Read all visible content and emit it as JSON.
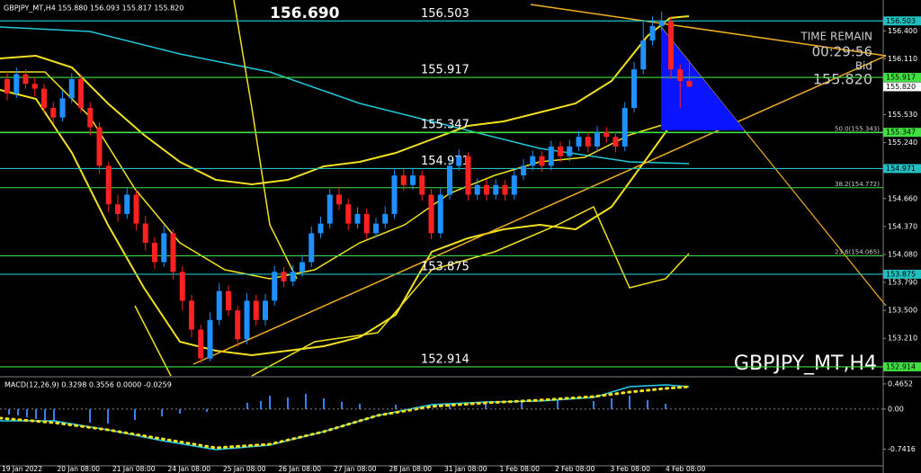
{
  "chart_data": {
    "type": "candlestick",
    "header": "GBPJPY_MT,H4  155.880 156.093 155.817 155.820",
    "current_high": "156.690",
    "time_remain_label": "TIME REMAIN",
    "time_remain": "00:29:56",
    "bid_label": "Bid",
    "bid": "155.820",
    "watermark": "GBPJPY_MT,H4",
    "up_color": "#1e90ff",
    "down_color": "#ff2020",
    "categories": [
      "19 Jan 2022",
      null,
      null,
      null,
      null,
      null,
      "20 Jan 08:00",
      null,
      null,
      null,
      null,
      null,
      "21 Jan 08:00",
      null,
      null,
      null,
      null,
      null,
      "24 Jan 08:00",
      null,
      null,
      null,
      null,
      null,
      "25 Jan 08:00",
      null,
      null,
      null,
      null,
      null,
      "26 Jan 08:00",
      null,
      null,
      null,
      null,
      null,
      "27 Jan 08:00",
      null,
      null,
      null,
      null,
      null,
      "28 Jan 08:00",
      null,
      null,
      null,
      null,
      null,
      "31 Jan 08:00",
      null,
      null,
      null,
      null,
      null,
      "1 Feb 08:00",
      null,
      null,
      null,
      null,
      null,
      "2 Feb 08:00",
      null,
      null,
      null,
      null,
      null,
      "3 Feb 08:00",
      null,
      null,
      null,
      null,
      null,
      "4 Feb 08:00",
      null,
      null
    ],
    "open": [
      155.9,
      155.75,
      155.95,
      155.85,
      155.8,
      155.6,
      155.5,
      155.7,
      155.9,
      155.6,
      155.4,
      155.0,
      154.6,
      154.5,
      154.7,
      154.4,
      154.2,
      154.0,
      154.3,
      153.9,
      153.6,
      153.3,
      153.0,
      153.4,
      153.7,
      153.5,
      153.2,
      153.6,
      153.4,
      153.6,
      153.9,
      153.8,
      153.9,
      154.0,
      154.3,
      154.4,
      154.7,
      154.6,
      154.4,
      154.5,
      154.3,
      154.4,
      154.5,
      154.9,
      154.8,
      154.9,
      154.7,
      154.3,
      154.7,
      155.0,
      155.1,
      154.7,
      154.8,
      154.7,
      154.8,
      154.7,
      154.9,
      155.0,
      155.1,
      155.0,
      155.2,
      155.1,
      155.2,
      155.3,
      155.2,
      155.35,
      155.3,
      155.2,
      155.6,
      156.0,
      156.3,
      156.45,
      156.5,
      156.0,
      155.88
    ],
    "high": [
      155.98,
      156.02,
      156.0,
      155.92,
      155.85,
      155.66,
      155.78,
      155.96,
      155.95,
      155.66,
      155.45,
      155.04,
      154.7,
      154.78,
      154.75,
      154.48,
      154.26,
      154.38,
      154.34,
      153.96,
      153.66,
      153.35,
      153.48,
      153.78,
      153.76,
      153.55,
      153.68,
      153.66,
      153.67,
      153.96,
      153.95,
      153.97,
      154.08,
      154.37,
      154.47,
      154.76,
      154.78,
      154.66,
      154.57,
      154.56,
      154.46,
      154.58,
      154.96,
      154.97,
      154.98,
      154.95,
      154.76,
      154.77,
      155.07,
      155.17,
      155.14,
      154.87,
      154.86,
      154.86,
      154.85,
      154.96,
      155.07,
      155.16,
      155.15,
      155.26,
      155.25,
      155.27,
      155.36,
      155.35,
      155.41,
      155.4,
      155.35,
      155.66,
      156.08,
      156.5,
      156.55,
      156.6,
      156.55,
      156.05,
      156.093
    ],
    "low": [
      155.68,
      155.7,
      155.8,
      155.72,
      155.55,
      155.44,
      155.46,
      155.65,
      155.55,
      155.32,
      154.92,
      154.52,
      154.42,
      154.45,
      154.33,
      154.12,
      153.93,
      153.95,
      153.82,
      153.5,
      153.22,
      152.95,
      152.97,
      153.35,
      153.44,
      153.12,
      153.15,
      153.34,
      153.34,
      153.55,
      153.74,
      153.75,
      153.85,
      153.95,
      154.25,
      154.35,
      154.54,
      154.33,
      154.35,
      154.24,
      154.25,
      154.35,
      154.45,
      154.74,
      154.75,
      154.64,
      154.24,
      154.25,
      154.65,
      154.95,
      154.64,
      154.65,
      154.64,
      154.65,
      154.64,
      154.65,
      154.85,
      154.95,
      154.94,
      154.95,
      155.04,
      155.05,
      155.15,
      155.14,
      155.15,
      155.24,
      155.14,
      155.15,
      155.55,
      155.95,
      156.25,
      156.4,
      155.9,
      155.6,
      155.817
    ],
    "close": [
      155.75,
      155.95,
      155.85,
      155.8,
      155.6,
      155.5,
      155.7,
      155.9,
      155.6,
      155.4,
      155.0,
      154.6,
      154.5,
      154.7,
      154.4,
      154.2,
      154.0,
      154.3,
      153.9,
      153.6,
      153.3,
      153.0,
      153.4,
      153.7,
      153.5,
      153.2,
      153.6,
      153.4,
      153.6,
      153.9,
      153.8,
      153.9,
      154.0,
      154.3,
      154.4,
      154.7,
      154.6,
      154.4,
      154.5,
      154.3,
      154.4,
      154.5,
      154.9,
      154.8,
      154.9,
      154.7,
      154.3,
      154.7,
      155.0,
      155.1,
      154.7,
      154.8,
      154.7,
      154.8,
      154.7,
      154.9,
      155.0,
      155.1,
      155.0,
      155.2,
      155.1,
      155.2,
      155.3,
      155.2,
      155.35,
      155.3,
      155.2,
      155.6,
      156.0,
      156.3,
      156.45,
      156.5,
      156.0,
      155.88,
      155.82
    ],
    "ylim": [
      152.82,
      156.72
    ],
    "yticks": [
      {
        "value": 156.4,
        "label": "156.400"
      },
      {
        "value": 156.11,
        "label": "156.110"
      },
      {
        "value": 155.53,
        "label": "155.530"
      },
      {
        "value": 155.24,
        "label": "155.240"
      },
      {
        "value": 154.66,
        "label": "154.660"
      },
      {
        "value": 154.37,
        "label": "154.370"
      },
      {
        "value": 154.08,
        "label": "154.080"
      },
      {
        "value": 153.79,
        "label": "153.790"
      },
      {
        "value": 153.5,
        "label": "153.500"
      },
      {
        "value": 153.21,
        "label": "153.210"
      }
    ],
    "bid_value": 155.82,
    "levels": [
      {
        "value": 156.503,
        "label": "156.503",
        "color": "#20c0c0"
      },
      {
        "value": 155.917,
        "label": "155.917",
        "color": "#40e040"
      },
      {
        "value": 155.347,
        "label": "155.347",
        "color": "#40e040"
      },
      {
        "value": 154.971,
        "label": "154.971",
        "color": "#20c0c0"
      },
      {
        "value": 153.875,
        "label": "153.875",
        "color": "#20c0c0"
      },
      {
        "value": 152.914,
        "label": "152.914",
        "color": "#40e040"
      }
    ],
    "fib_levels": [
      {
        "value": 155.343,
        "label": "50.0(155.343)"
      },
      {
        "value": 154.772,
        "label": "38.2(154.772)"
      },
      {
        "value": 154.065,
        "label": "23.6(154.065)"
      }
    ],
    "fib_color": "#40e040",
    "macd": {
      "label": "MACD(12,26,9) 0.3298 0.3556 0.0000 -0.0259",
      "ylim": [
        -1.05,
        0.58
      ],
      "yticks": [
        {
          "value": 0.4652,
          "label": "0.4652"
        },
        {
          "value": 0,
          "label": "0.00"
        },
        {
          "value": -0.7416,
          "label": "-0.7416"
        }
      ]
    }
  }
}
